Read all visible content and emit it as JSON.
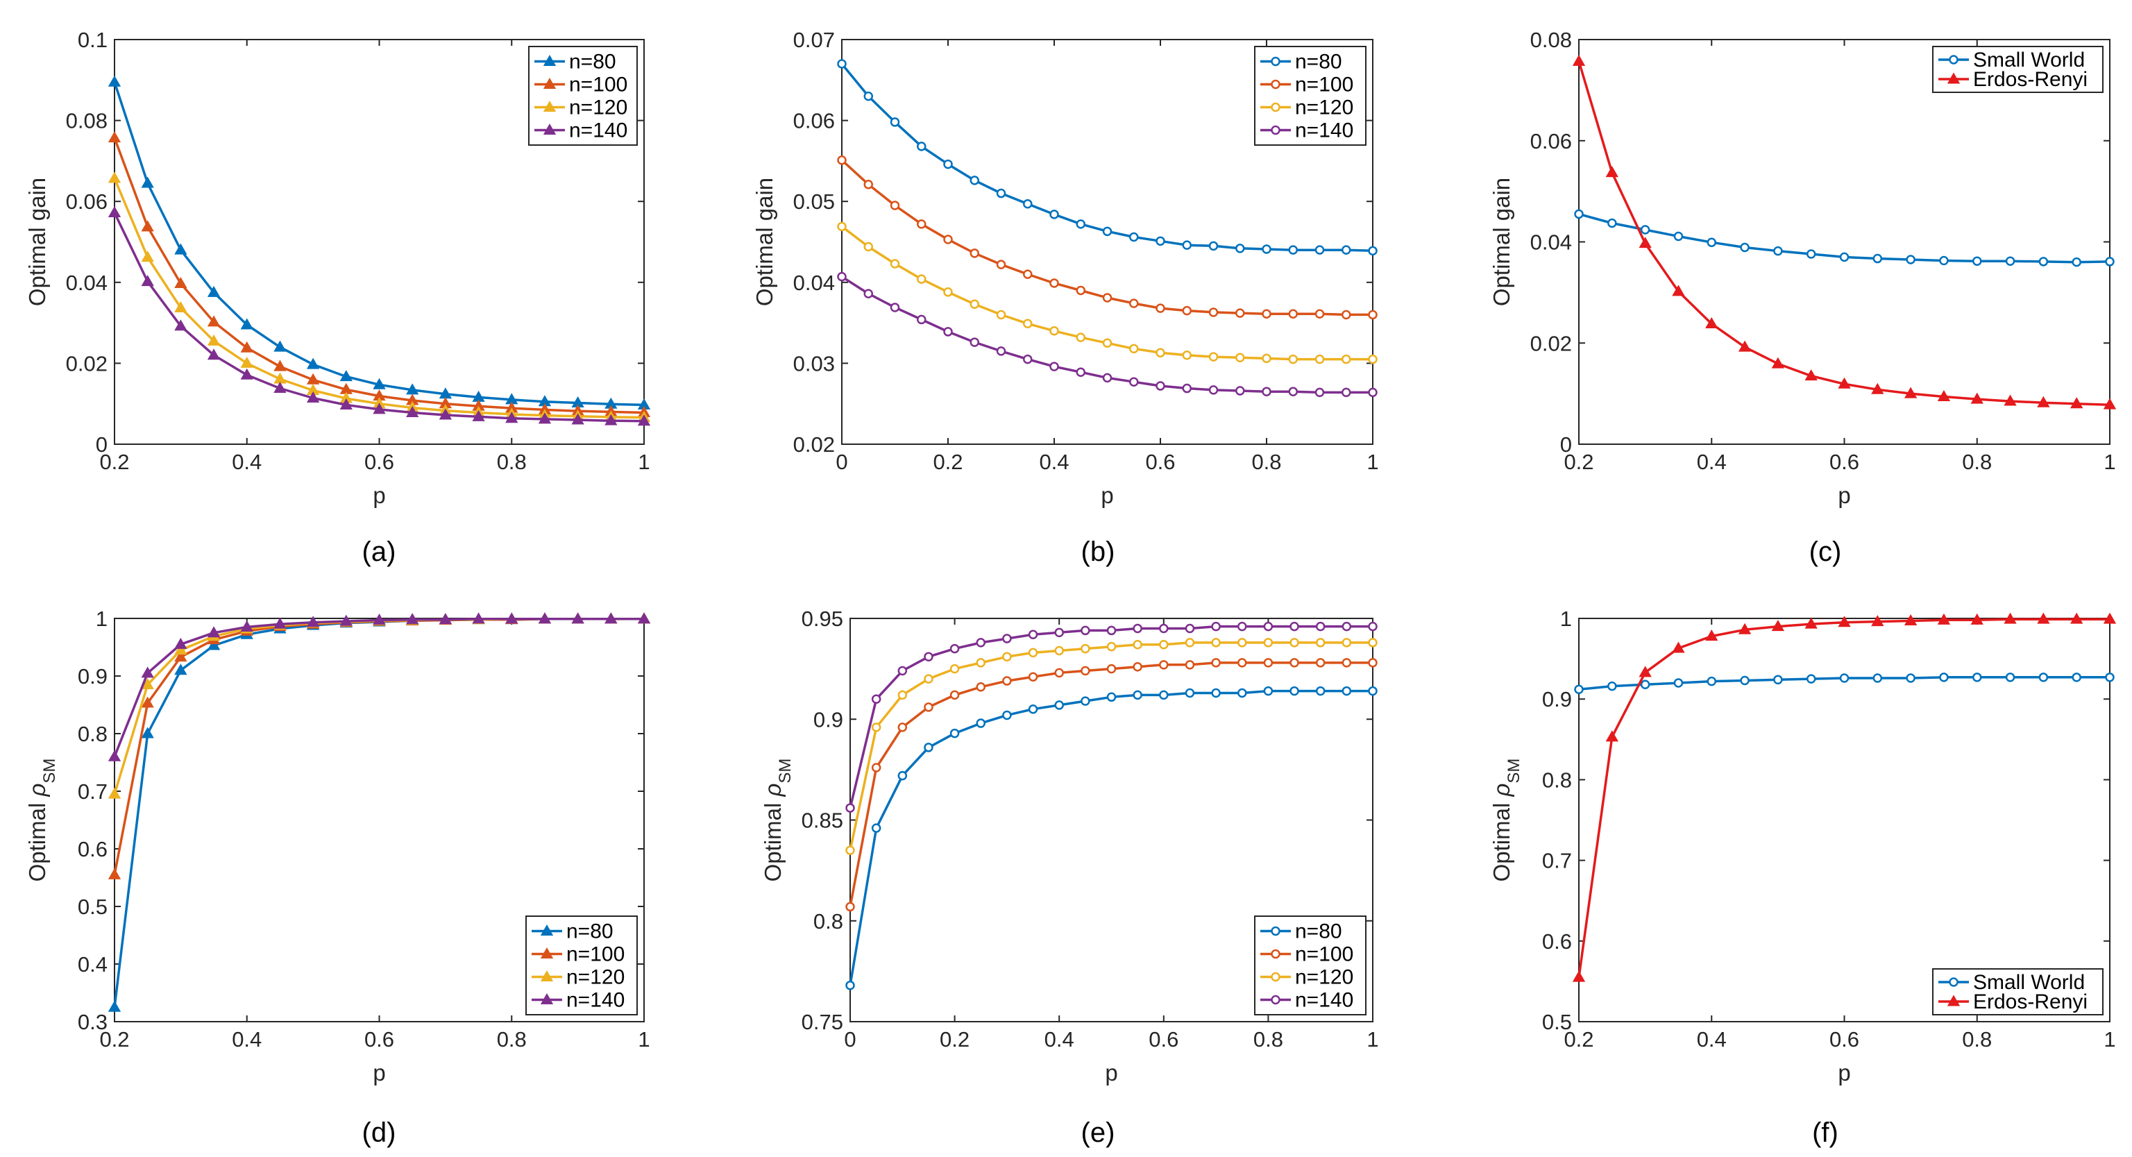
{
  "panels": [
    {
      "id": "a",
      "label": "(a)"
    },
    {
      "id": "b",
      "label": "(b)"
    },
    {
      "id": "c",
      "label": "(c)"
    },
    {
      "id": "d",
      "label": "(d)"
    },
    {
      "id": "e",
      "label": "(e)"
    },
    {
      "id": "f",
      "label": "(f)"
    }
  ],
  "chart_data": [
    {
      "panel": "(a)",
      "type": "line",
      "title": "",
      "xlabel": "p",
      "ylabel": "Optimal gain",
      "xlim": [
        0.2,
        1
      ],
      "ylim": [
        0,
        0.1
      ],
      "xticks": [
        0.2,
        0.4,
        0.6,
        0.8,
        1
      ],
      "xtick_labels": [
        "0.2",
        "0.4",
        "0.6",
        "0.8",
        "1"
      ],
      "yticks": [
        0,
        0.02,
        0.04,
        0.06,
        0.08,
        0.1
      ],
      "ytick_labels": [
        "0",
        "0.02",
        "0.04",
        "0.06",
        "0.08",
        "0.1"
      ],
      "legend_position": "top-right",
      "marker": "triangle",
      "grid": false,
      "x": [
        0.2,
        0.25,
        0.3,
        0.35,
        0.4,
        0.45,
        0.5,
        0.55,
        0.6,
        0.65,
        0.7,
        0.75,
        0.8,
        0.85,
        0.9,
        0.95,
        1.0
      ],
      "series": [
        {
          "name": "n=80",
          "color": "#0072BD",
          "values": [
            0.0895,
            0.0645,
            0.048,
            0.0375,
            0.0295,
            0.024,
            0.0197,
            0.0167,
            0.0147,
            0.0134,
            0.0124,
            0.0116,
            0.011,
            0.0105,
            0.0102,
            0.0099,
            0.0097
          ]
        },
        {
          "name": "n=100",
          "color": "#D95319",
          "values": [
            0.0757,
            0.0537,
            0.0397,
            0.0302,
            0.0238,
            0.0192,
            0.0159,
            0.0135,
            0.0119,
            0.0108,
            0.01,
            0.0094,
            0.0089,
            0.0085,
            0.0082,
            0.008,
            0.0078
          ]
        },
        {
          "name": "n=120",
          "color": "#EDB120",
          "values": [
            0.0657,
            0.0462,
            0.0337,
            0.0255,
            0.02,
            0.0161,
            0.0133,
            0.0113,
            0.01,
            0.009,
            0.0083,
            0.0078,
            0.0074,
            0.0071,
            0.0069,
            0.0067,
            0.0066
          ]
        },
        {
          "name": "n=140",
          "color": "#7E2F8E",
          "values": [
            0.0572,
            0.0402,
            0.0292,
            0.022,
            0.0171,
            0.0138,
            0.0114,
            0.0097,
            0.0086,
            0.0078,
            0.0072,
            0.0068,
            0.0064,
            0.0062,
            0.006,
            0.0058,
            0.0057
          ]
        }
      ]
    },
    {
      "panel": "(b)",
      "type": "line",
      "title": "",
      "xlabel": "p",
      "ylabel": "Optimal gain",
      "xlim": [
        0,
        1
      ],
      "ylim": [
        0.02,
        0.07
      ],
      "xticks": [
        0,
        0.2,
        0.4,
        0.6,
        0.8,
        1
      ],
      "xtick_labels": [
        "0",
        "0.2",
        "0.4",
        "0.6",
        "0.8",
        "1"
      ],
      "yticks": [
        0.02,
        0.03,
        0.04,
        0.05,
        0.06,
        0.07
      ],
      "ytick_labels": [
        "0.02",
        "0.03",
        "0.04",
        "0.05",
        "0.06",
        "0.07"
      ],
      "legend_position": "top-right",
      "marker": "circle",
      "grid": false,
      "x": [
        0,
        0.05,
        0.1,
        0.15,
        0.2,
        0.25,
        0.3,
        0.35,
        0.4,
        0.45,
        0.5,
        0.55,
        0.6,
        0.65,
        0.7,
        0.75,
        0.8,
        0.85,
        0.9,
        0.95,
        1.0
      ],
      "series": [
        {
          "name": "n=80",
          "color": "#0072BD",
          "values": [
            0.067,
            0.063,
            0.0598,
            0.0568,
            0.0546,
            0.0526,
            0.051,
            0.0497,
            0.0484,
            0.0472,
            0.0463,
            0.0456,
            0.0451,
            0.0446,
            0.0445,
            0.0442,
            0.0441,
            0.044,
            0.044,
            0.044,
            0.0439
          ]
        },
        {
          "name": "n=100",
          "color": "#D95319",
          "values": [
            0.0551,
            0.0521,
            0.0495,
            0.0472,
            0.0453,
            0.0436,
            0.0422,
            0.041,
            0.0399,
            0.039,
            0.0381,
            0.0374,
            0.0368,
            0.0365,
            0.0363,
            0.0362,
            0.0361,
            0.0361,
            0.0361,
            0.036,
            0.036
          ]
        },
        {
          "name": "n=120",
          "color": "#EDB120",
          "values": [
            0.0469,
            0.0444,
            0.0423,
            0.0404,
            0.0388,
            0.0373,
            0.036,
            0.0349,
            0.034,
            0.0332,
            0.0325,
            0.0318,
            0.0313,
            0.031,
            0.0308,
            0.0307,
            0.0306,
            0.0305,
            0.0305,
            0.0305,
            0.0305
          ]
        },
        {
          "name": "n=140",
          "color": "#7E2F8E",
          "values": [
            0.0407,
            0.0386,
            0.0369,
            0.0354,
            0.0339,
            0.0326,
            0.0315,
            0.0305,
            0.0296,
            0.0289,
            0.0282,
            0.0277,
            0.0272,
            0.0269,
            0.0267,
            0.0266,
            0.0265,
            0.0265,
            0.0264,
            0.0264,
            0.0264
          ]
        }
      ]
    },
    {
      "panel": "(c)",
      "type": "line",
      "title": "",
      "xlabel": "p",
      "ylabel": "Optimal gain",
      "xlim": [
        0.2,
        1
      ],
      "ylim": [
        0,
        0.08
      ],
      "xticks": [
        0.2,
        0.4,
        0.6,
        0.8,
        1
      ],
      "xtick_labels": [
        "0.2",
        "0.4",
        "0.6",
        "0.8",
        "1"
      ],
      "yticks": [
        0,
        0.02,
        0.04,
        0.06,
        0.08
      ],
      "ytick_labels": [
        "0",
        "0.02",
        "0.04",
        "0.06",
        "0.08"
      ],
      "legend_position": "top-right",
      "grid": false,
      "x": [
        0.2,
        0.25,
        0.3,
        0.35,
        0.4,
        0.45,
        0.5,
        0.55,
        0.6,
        0.65,
        0.7,
        0.75,
        0.8,
        0.85,
        0.9,
        0.95,
        1.0
      ],
      "series": [
        {
          "name": "Small World",
          "color": "#0072BD",
          "marker": "circle",
          "values": [
            0.0455,
            0.0437,
            0.0424,
            0.0411,
            0.0399,
            0.0389,
            0.0382,
            0.0376,
            0.037,
            0.0367,
            0.0365,
            0.0363,
            0.0362,
            0.0362,
            0.0361,
            0.036,
            0.0361
          ]
        },
        {
          "name": "Erdos-Renyi",
          "color": "#E41A1C",
          "marker": "triangle",
          "values": [
            0.0757,
            0.0537,
            0.0397,
            0.0302,
            0.0238,
            0.0192,
            0.0159,
            0.0135,
            0.0119,
            0.0108,
            0.01,
            0.0094,
            0.0089,
            0.0085,
            0.0082,
            0.008,
            0.0078
          ]
        }
      ]
    },
    {
      "panel": "(d)",
      "type": "line",
      "title": "",
      "xlabel": "p",
      "ylabel_prefix": "Optimal",
      "ylabel_symbol": "ρ",
      "ylabel_subscript": "SM",
      "xlim": [
        0.2,
        1
      ],
      "ylim": [
        0.3,
        1
      ],
      "xticks": [
        0.2,
        0.4,
        0.6,
        0.8,
        1
      ],
      "xtick_labels": [
        "0.2",
        "0.4",
        "0.6",
        "0.8",
        "1"
      ],
      "yticks": [
        0.3,
        0.4,
        0.5,
        0.6,
        0.7,
        0.8,
        0.9,
        1
      ],
      "ytick_labels": [
        "0.3",
        "0.4",
        "0.5",
        "0.6",
        "0.7",
        "0.8",
        "0.9",
        "1"
      ],
      "legend_position": "bottom-right",
      "marker": "triangle",
      "grid": false,
      "x": [
        0.2,
        0.25,
        0.3,
        0.35,
        0.4,
        0.45,
        0.5,
        0.55,
        0.6,
        0.65,
        0.7,
        0.75,
        0.8,
        0.85,
        0.9,
        0.95,
        1.0
      ],
      "series": [
        {
          "name": "n=80",
          "color": "#0072BD",
          "values": [
            0.325,
            0.8,
            0.91,
            0.953,
            0.972,
            0.982,
            0.988,
            0.992,
            0.994,
            0.996,
            0.997,
            0.998,
            0.998,
            0.999,
            0.999,
            0.999,
            0.999
          ]
        },
        {
          "name": "n=100",
          "color": "#D95319",
          "values": [
            0.555,
            0.853,
            0.933,
            0.963,
            0.978,
            0.986,
            0.99,
            0.993,
            0.995,
            0.996,
            0.997,
            0.998,
            0.998,
            0.999,
            0.999,
            0.999,
            0.999
          ]
        },
        {
          "name": "n=120",
          "color": "#EDB120",
          "values": [
            0.695,
            0.885,
            0.945,
            0.969,
            0.982,
            0.988,
            0.992,
            0.994,
            0.996,
            0.997,
            0.998,
            0.998,
            0.999,
            0.999,
            0.999,
            0.999,
            0.999
          ]
        },
        {
          "name": "n=140",
          "color": "#7E2F8E",
          "values": [
            0.76,
            0.905,
            0.955,
            0.975,
            0.985,
            0.99,
            0.993,
            0.995,
            0.997,
            0.998,
            0.998,
            0.999,
            0.999,
            0.999,
            0.999,
            0.999,
            0.999
          ]
        }
      ]
    },
    {
      "panel": "(e)",
      "type": "line",
      "title": "",
      "xlabel": "p",
      "ylabel_prefix": "Optimal",
      "ylabel_symbol": "ρ",
      "ylabel_subscript": "SM",
      "xlim": [
        0,
        1
      ],
      "ylim": [
        0.75,
        0.95
      ],
      "xticks": [
        0,
        0.2,
        0.4,
        0.6,
        0.8,
        1
      ],
      "xtick_labels": [
        "0",
        "0.2",
        "0.4",
        "0.6",
        "0.8",
        "1"
      ],
      "yticks": [
        0.75,
        0.8,
        0.85,
        0.9,
        0.95
      ],
      "ytick_labels": [
        "0.75",
        "0.8",
        "0.85",
        "0.9",
        "0.95"
      ],
      "legend_position": "bottom-right",
      "marker": "circle",
      "grid": false,
      "x": [
        0,
        0.05,
        0.1,
        0.15,
        0.2,
        0.25,
        0.3,
        0.35,
        0.4,
        0.45,
        0.5,
        0.55,
        0.6,
        0.65,
        0.7,
        0.75,
        0.8,
        0.85,
        0.9,
        0.95,
        1.0
      ],
      "series": [
        {
          "name": "n=80",
          "color": "#0072BD",
          "values": [
            0.768,
            0.846,
            0.872,
            0.886,
            0.893,
            0.898,
            0.902,
            0.905,
            0.907,
            0.909,
            0.911,
            0.912,
            0.912,
            0.913,
            0.913,
            0.913,
            0.914,
            0.914,
            0.914,
            0.914,
            0.914
          ]
        },
        {
          "name": "n=100",
          "color": "#D95319",
          "values": [
            0.807,
            0.876,
            0.896,
            0.906,
            0.912,
            0.916,
            0.919,
            0.921,
            0.923,
            0.924,
            0.925,
            0.926,
            0.927,
            0.927,
            0.928,
            0.928,
            0.928,
            0.928,
            0.928,
            0.928,
            0.928
          ]
        },
        {
          "name": "n=120",
          "color": "#EDB120",
          "values": [
            0.835,
            0.896,
            0.912,
            0.92,
            0.925,
            0.928,
            0.931,
            0.933,
            0.934,
            0.935,
            0.936,
            0.937,
            0.937,
            0.938,
            0.938,
            0.938,
            0.938,
            0.938,
            0.938,
            0.938,
            0.938
          ]
        },
        {
          "name": "n=140",
          "color": "#7E2F8E",
          "values": [
            0.856,
            0.91,
            0.924,
            0.931,
            0.935,
            0.938,
            0.94,
            0.942,
            0.943,
            0.944,
            0.944,
            0.945,
            0.945,
            0.945,
            0.946,
            0.946,
            0.946,
            0.946,
            0.946,
            0.946,
            0.946
          ]
        }
      ]
    },
    {
      "panel": "(f)",
      "type": "line",
      "title": "",
      "xlabel": "p",
      "ylabel_prefix": "Optimal",
      "ylabel_symbol": "ρ",
      "ylabel_subscript": "SM",
      "xlim": [
        0.2,
        1
      ],
      "ylim": [
        0.5,
        1
      ],
      "xticks": [
        0.2,
        0.4,
        0.6,
        0.8,
        1
      ],
      "xtick_labels": [
        "0.2",
        "0.4",
        "0.6",
        "0.8",
        "1"
      ],
      "yticks": [
        0.5,
        0.6,
        0.7,
        0.8,
        0.9,
        1
      ],
      "ytick_labels": [
        "0.5",
        "0.6",
        "0.7",
        "0.8",
        "0.9",
        "1"
      ],
      "legend_position": "bottom-right",
      "grid": false,
      "x": [
        0.2,
        0.25,
        0.3,
        0.35,
        0.4,
        0.45,
        0.5,
        0.55,
        0.6,
        0.65,
        0.7,
        0.75,
        0.8,
        0.85,
        0.9,
        0.95,
        1.0
      ],
      "series": [
        {
          "name": "Small World",
          "color": "#0072BD",
          "marker": "circle",
          "values": [
            0.912,
            0.916,
            0.918,
            0.92,
            0.922,
            0.923,
            0.924,
            0.925,
            0.926,
            0.926,
            0.926,
            0.927,
            0.927,
            0.927,
            0.927,
            0.927,
            0.927
          ]
        },
        {
          "name": "Erdos-Renyi",
          "color": "#E41A1C",
          "marker": "triangle",
          "values": [
            0.555,
            0.853,
            0.933,
            0.963,
            0.978,
            0.986,
            0.99,
            0.993,
            0.995,
            0.996,
            0.997,
            0.998,
            0.998,
            0.999,
            0.999,
            0.999,
            0.999
          ]
        }
      ]
    }
  ]
}
